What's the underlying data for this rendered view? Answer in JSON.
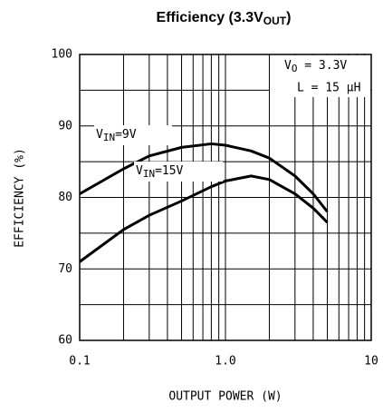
{
  "chart_data": {
    "type": "line",
    "title": "Efficiency (3.3V",
    "title_sub": "OUT",
    "title_end": ")",
    "x_label": "OUTPUT POWER (W)",
    "y_label": "EFFICIENCY (%)",
    "log_x": true,
    "grid": true,
    "xlim": [
      0.1,
      10
    ],
    "xticks": [
      0.1,
      {
        "value": 1,
        "label": "1.0"
      },
      10
    ],
    "xgrid_minor": [
      0.2,
      0.3,
      0.4,
      0.5,
      0.6,
      0.7,
      0.8,
      0.9,
      2,
      3,
      4,
      5,
      6,
      7,
      8,
      9
    ],
    "ylim": [
      60,
      100
    ],
    "yticks": [
      60,
      70,
      80,
      90,
      100
    ],
    "ygrid_minor": [
      65,
      75,
      85,
      95
    ],
    "annotations": [
      {
        "text": "V",
        "sub": "O",
        "end": " = 3.3V"
      },
      {
        "text": "L = 15 μH"
      }
    ],
    "series": [
      {
        "name": "V",
        "name_sub": "IN",
        "name_end": "=9V",
        "color": "#000000",
        "x": [
          0.1,
          0.2,
          0.3,
          0.5,
          0.8,
          1.0,
          1.5,
          2.0,
          3.0,
          4.0,
          5.0
        ],
        "values": [
          80.5,
          84,
          85.8,
          87,
          87.5,
          87.3,
          86.5,
          85.5,
          83,
          80.5,
          78
        ]
      },
      {
        "name": "V",
        "name_sub": "IN",
        "name_end": "=15V",
        "color": "#000000",
        "x": [
          0.1,
          0.2,
          0.3,
          0.5,
          0.8,
          1.0,
          1.5,
          2.0,
          3.0,
          4.0,
          5.0
        ],
        "values": [
          71,
          75.5,
          77.5,
          79.5,
          81.5,
          82.3,
          83,
          82.5,
          80.5,
          78.5,
          76.5
        ]
      }
    ]
  }
}
